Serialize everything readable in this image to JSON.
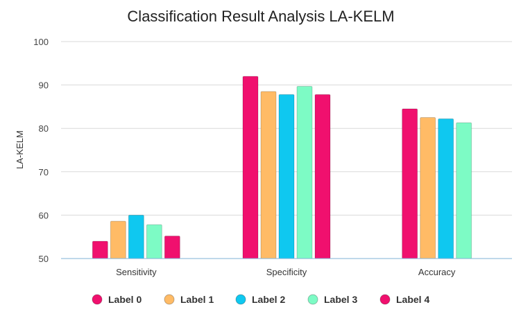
{
  "chart_data": {
    "type": "bar",
    "title": "Classification Result Analysis LA-KELM",
    "xlabel": "",
    "ylabel": "LA-KELM",
    "ylim": [
      50,
      100
    ],
    "yticks": [
      50,
      60,
      70,
      80,
      90,
      100
    ],
    "grid": true,
    "legend_position": "bottom",
    "categories": [
      "Sensitivity",
      "Specificity",
      "Accuracy"
    ],
    "series": [
      {
        "name": "Label 0",
        "color": "#f0106e",
        "values": [
          54.0,
          92.0,
          84.5
        ]
      },
      {
        "name": "Label 1",
        "color": "#ffbb66",
        "values": [
          58.6,
          88.5,
          82.5
        ]
      },
      {
        "name": "Label 2",
        "color": "#0fc8f0",
        "values": [
          60.0,
          87.8,
          82.2
        ]
      },
      {
        "name": "Label 3",
        "color": "#7dfbc5",
        "values": [
          57.8,
          89.7,
          81.3
        ]
      },
      {
        "name": "Label 4",
        "color": "#f0106e",
        "values": [
          55.2,
          87.8,
          null
        ]
      }
    ]
  }
}
